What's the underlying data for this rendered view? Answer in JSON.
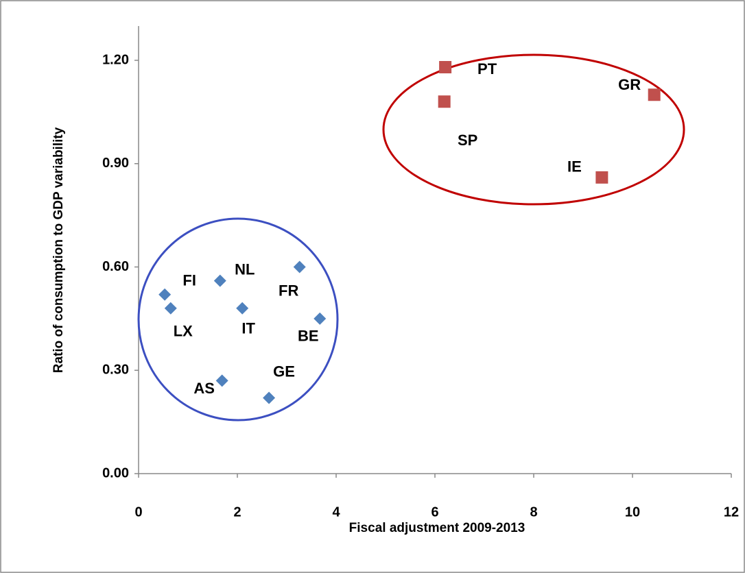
{
  "chart_data": {
    "type": "scatter",
    "x_label": "Fiscal adjustment 2009-2013",
    "y_label": "Ratio of consumption to GDP variability",
    "xlim": [
      0,
      12
    ],
    "xticks": [
      0,
      2,
      4,
      6,
      8,
      10,
      12
    ],
    "ylim": [
      0,
      1.2
    ],
    "yticks": [
      {
        "value": 0,
        "label": "0.00"
      },
      {
        "value": 0.3,
        "label": "0.30"
      },
      {
        "value": 0.6,
        "label": "0.60"
      },
      {
        "value": 0.9,
        "label": "0.90"
      },
      {
        "value": 1.2,
        "label": "1.20"
      }
    ],
    "grid": false,
    "series": [
      {
        "color": "#4f81bd",
        "marker": "diamond",
        "labels": [
          "FI",
          "LX",
          "NL",
          "IT",
          "FR",
          "BE",
          "AS",
          "GE"
        ],
        "x": [
          0.53,
          0.65,
          1.65,
          2.1,
          3.26,
          3.67,
          1.69,
          2.64
        ],
        "values": [
          0.52,
          0.48,
          0.56,
          0.48,
          0.6,
          0.45,
          0.27,
          0.22
        ]
      },
      {
        "color": "#c0504d",
        "marker": "square",
        "labels": [
          "PT",
          "SP",
          "GR",
          "IE"
        ],
        "x": [
          6.21,
          6.19,
          10.44,
          9.38
        ],
        "values": [
          1.18,
          1.08,
          1.1,
          0.86
        ]
      }
    ]
  }
}
